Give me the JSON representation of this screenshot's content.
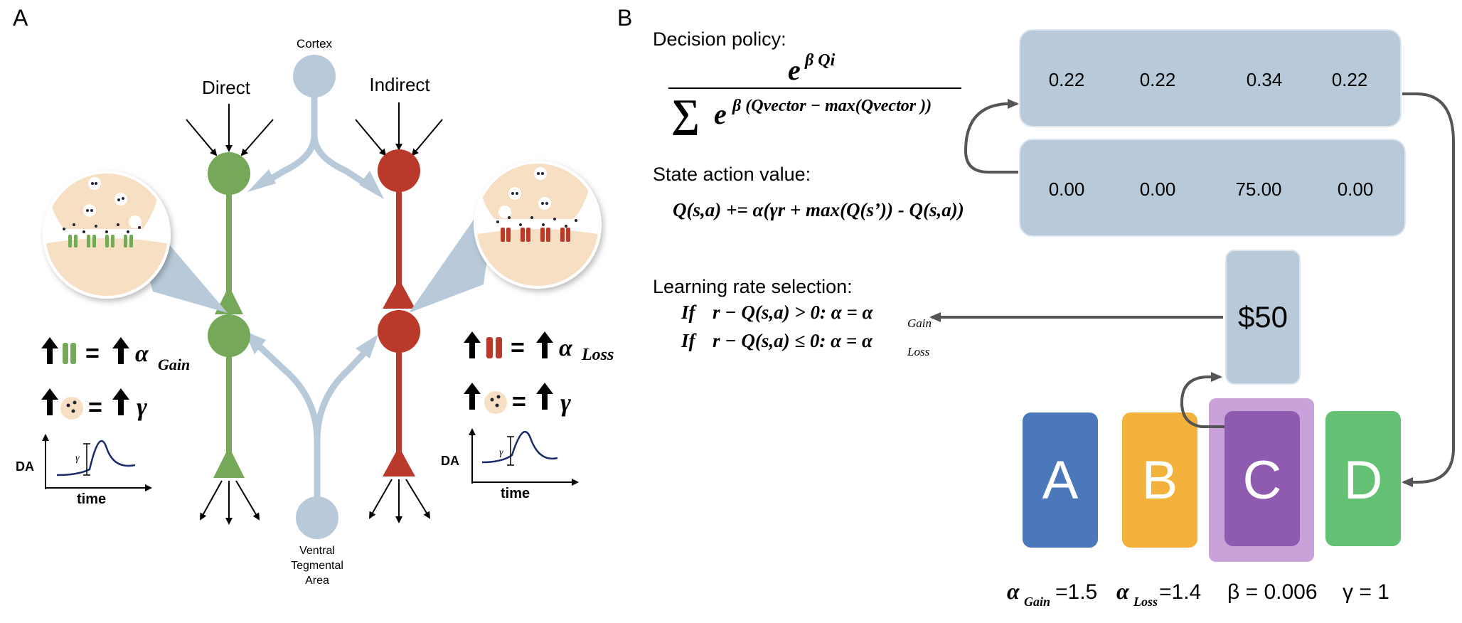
{
  "panel_a": {
    "letter": "A",
    "cortex_label": "Cortex",
    "direct_label": "Direct",
    "indirect_label": "Indirect",
    "vta_label_line1": "Ventral",
    "vta_label_line2": "Tegmental",
    "vta_label_line3": "Area",
    "gain_eq_symbol": "α",
    "gain_eq_subscript": "Gain",
    "loss_eq_symbol": "α",
    "loss_eq_subscript": "Loss",
    "gamma_symbol": "γ",
    "equals": "=",
    "da_label": "DA",
    "time_label": "time",
    "inset_gamma": "γ",
    "colors": {
      "direct": "#76a85a",
      "indirect": "#b93a2b",
      "pathway": "#b8cad9",
      "synapse": "#f7dfc4"
    }
  },
  "panel_b": {
    "letter": "B",
    "decision_policy_label": "Decision policy:",
    "softmax_numerator": "e",
    "softmax_num_exp": "β Qi",
    "softmax_sum": "∑",
    "softmax_den_exp": "β (Qvector − max(Qvector ))",
    "state_action_label": "State action value:",
    "q_update": "Q(s,a) += α(γr + max(Q(s’)) - Q(s,a))",
    "learning_rate_label": "Learning rate selection:",
    "rule_gain_if": "If",
    "rule_gain_cond": "r − Q(s,a) > 0: α = α",
    "rule_gain_sub": "Gain",
    "rule_loss_if": "If",
    "rule_loss_cond": "r − Q(s,a) ≤ 0: α = α",
    "rule_loss_sub": "Loss",
    "policy_values": [
      "0.22",
      "0.22",
      "0.34",
      "0.22"
    ],
    "q_values": [
      "0.00",
      "0.00",
      "75.00",
      "0.00"
    ],
    "reward": "$50",
    "options": [
      {
        "label": "A",
        "color": "#4a78bb"
      },
      {
        "label": "B",
        "color": "#f3b23c"
      },
      {
        "label": "C",
        "color": "#8e5bb0"
      },
      {
        "label": "D",
        "color": "#64c173"
      }
    ],
    "params": {
      "alpha": "α",
      "gain_sub": "Gain",
      "gain_val": "=1.5",
      "loss_sub": "Loss",
      "loss_val": "=1.4",
      "beta": "β = 0.006",
      "gamma": "γ = 1"
    },
    "colors": {
      "box": "#b8cad9",
      "selected_halo": "#c8a2d8",
      "arrow": "#555555"
    }
  }
}
